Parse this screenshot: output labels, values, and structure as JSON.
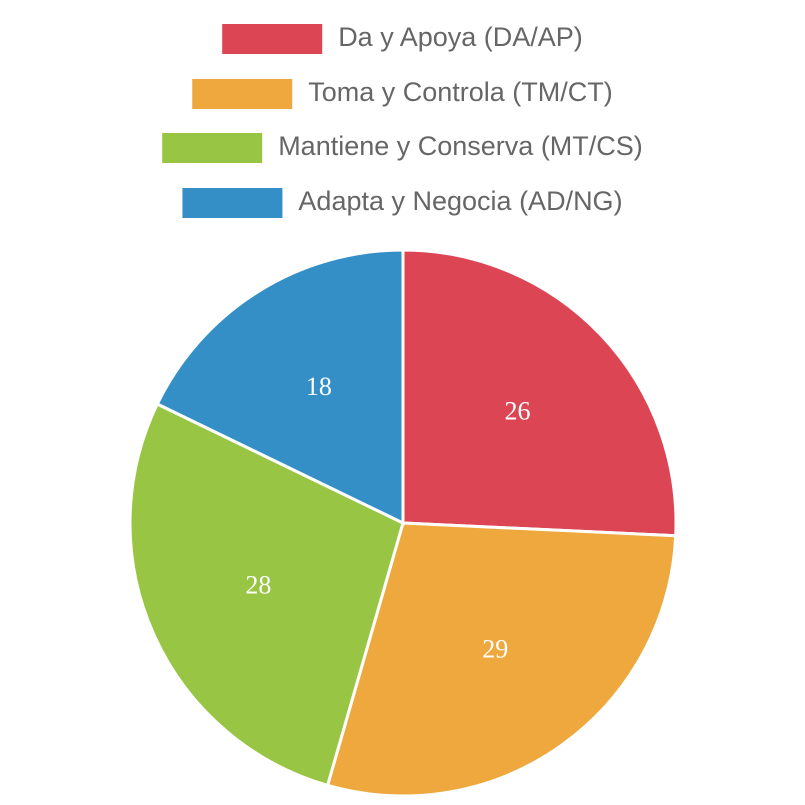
{
  "chart_data": {
    "type": "pie",
    "categories": [
      "Da y Apoya (DA/AP)",
      "Toma y Controla (TM/CT)",
      "Mantiene y Conserva (MT/CS)",
      "Adapta y Negocia (AD/NG)"
    ],
    "values": [
      26,
      29,
      28,
      18
    ],
    "colors": [
      "#dc4654",
      "#eea83e",
      "#98c544",
      "#348fc7"
    ],
    "legend": "top"
  }
}
